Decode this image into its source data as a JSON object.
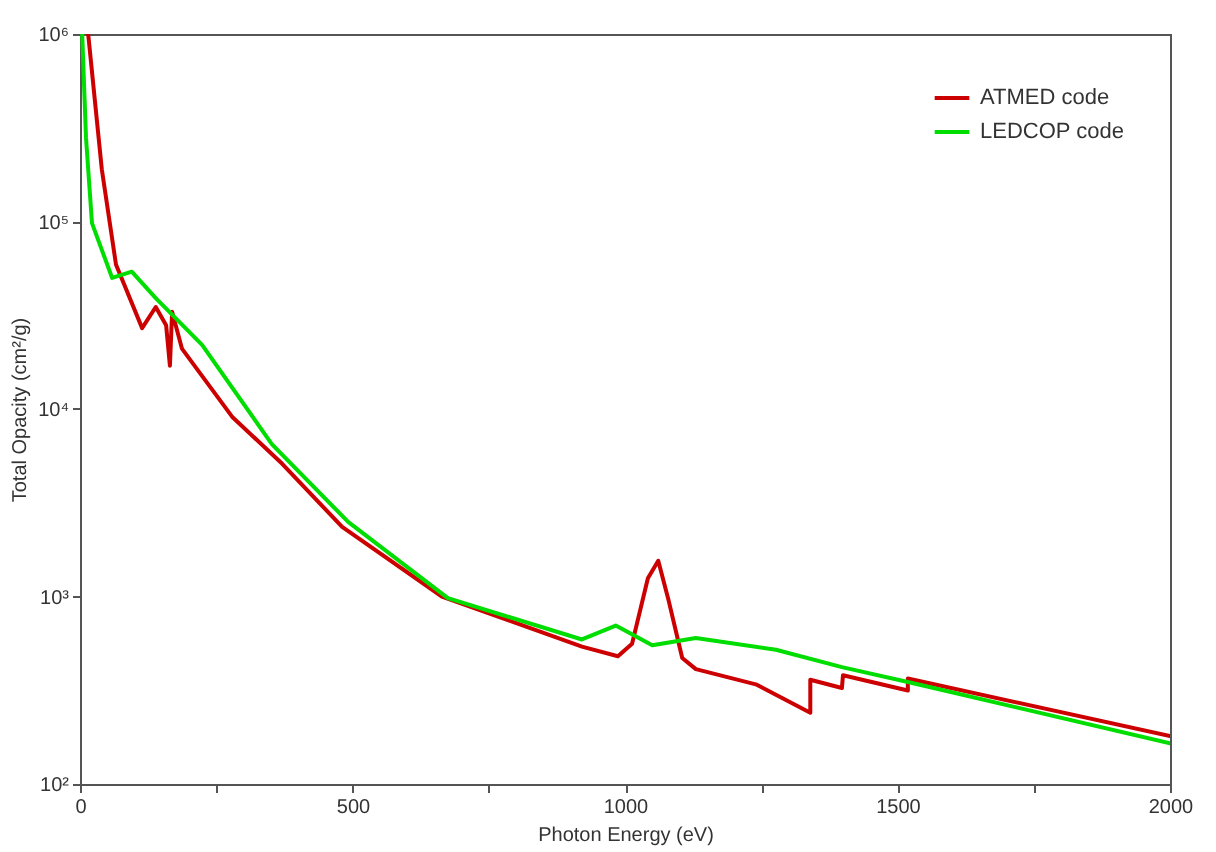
{
  "chart_data": {
    "type": "line",
    "xlabel": "Photon Energy (eV)",
    "ylabel": "Total Opacity (cm²/g)",
    "log": "y",
    "grid": false,
    "legend": "top right",
    "marker": "none",
    "line_style": "solid",
    "xlim": [
      0,
      2000
    ],
    "xticks": [
      0,
      {
        "value": 250,
        "label": null
      },
      500,
      {
        "value": 750,
        "label": null
      },
      1000,
      {
        "value": 1250,
        "label": null
      },
      1500,
      {
        "value": 1750,
        "label": null
      },
      2000
    ],
    "ylim": [
      100,
      1000000
    ],
    "yticks": [
      {
        "value": 100,
        "label": "10²"
      },
      {
        "value": 1000,
        "label": "10³"
      },
      {
        "value": 10000,
        "label": "10⁴"
      },
      {
        "value": 100000,
        "label": "10⁵"
      },
      {
        "value": 1000000,
        "label": "10⁶"
      }
    ],
    "series": [
      {
        "name": "ATMED code",
        "color": "#cc0000",
        "x": [
          15,
          40,
          66,
          114,
          139,
          158,
          165,
          169,
          187,
          279,
          371,
          481,
          664,
          921,
          987,
          1013,
          1042,
          1061,
          1079,
          1105,
          1130,
          1240,
          1340,
          1340,
          1398,
          1400,
          1519,
          1519,
          2000
        ],
        "values": [
          1000000,
          190000,
          59000,
          27000,
          35000,
          28000,
          17000,
          33000,
          21000,
          9100,
          5100,
          2350,
          1000,
          540,
          480,
          560,
          1250,
          1550,
          980,
          470,
          410,
          340,
          240,
          360,
          325,
          380,
          315,
          365,
          180
        ]
      },
      {
        "name": "LEDCOP code",
        "color": "#00dd00",
        "x": [
          4,
          11,
          22,
          59,
          95,
          139,
          224,
          352,
          492,
          675,
          921,
          983,
          1050,
          1130,
          1277,
          1398,
          1519,
          2000
        ],
        "values": [
          1000000,
          280000,
          98000,
          50000,
          54000,
          39000,
          22000,
          6500,
          2500,
          980,
          590,
          700,
          550,
          600,
          520,
          420,
          350,
          165
        ]
      }
    ]
  }
}
